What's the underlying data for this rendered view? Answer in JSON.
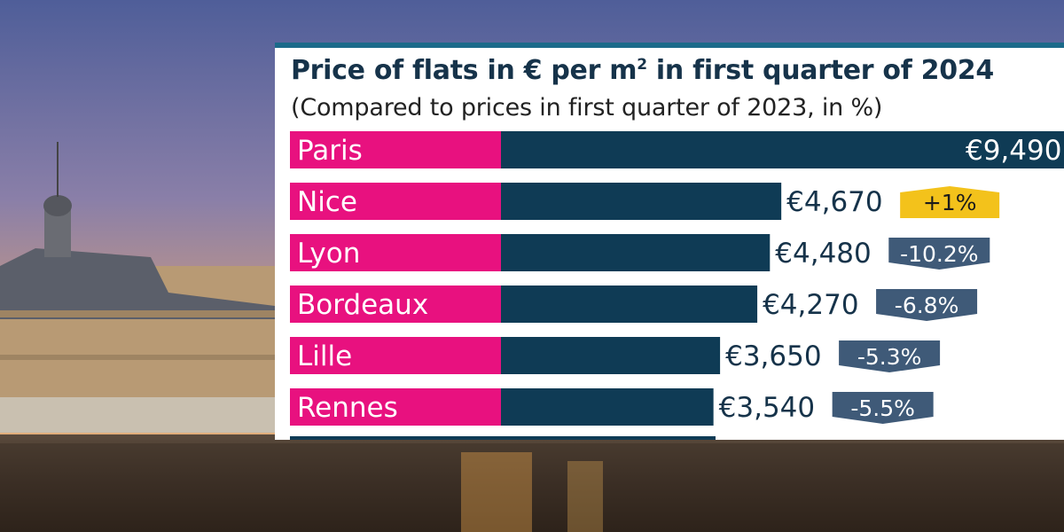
{
  "title": "Price of flats in € per m",
  "title_superscript": "2",
  "title_suffix": " in first quarter of 2024",
  "subtitle": "(Compared to prices in first quarter of 2023, in %)",
  "colors": {
    "label_bg": "#e8117f",
    "bar": "#0f3b55",
    "badge_negative": "#3f5a78",
    "badge_positive": "#f3c21b",
    "accent_line": "#1b6a8a"
  },
  "chart_data": {
    "type": "bar",
    "orientation": "horizontal",
    "title": "Price of flats in € per m² in first quarter of 2024",
    "subtitle": "(Compared to prices in first quarter of 2023, in %)",
    "categories": [
      "Paris",
      "Nice",
      "Lyon",
      "Bordeaux",
      "Lille",
      "Rennes"
    ],
    "values": [
      9490,
      4670,
      4480,
      4270,
      3650,
      3540
    ],
    "value_labels": [
      "€9,490",
      "€4,670",
      "€4,480",
      "€4,270",
      "€3,650",
      "€3,540"
    ],
    "change_labels": [
      "",
      "+1%",
      "-10.2%",
      "-6.8%",
      "-5.3%",
      "-5.5%"
    ],
    "change_values": [
      null,
      1,
      -10.2,
      -6.8,
      -5.3,
      -5.5
    ]
  }
}
